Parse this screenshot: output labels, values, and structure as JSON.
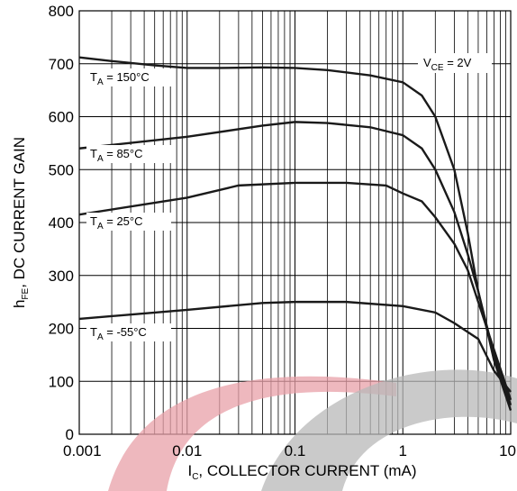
{
  "chart_data": {
    "type": "line",
    "log_x": true,
    "grid": true,
    "color": "#1a1a1a",
    "y_label": {
      "base": "h",
      "sub": "FE",
      "text": ", DC CURRENT GAIN"
    },
    "x_label": {
      "base": "I",
      "sub": "C",
      "text": ", COLLECTOR CURRENT (mA)"
    },
    "annotation": {
      "base": "V",
      "sub": "CE",
      "text": " = 2V"
    },
    "xlim": [
      0.001,
      10
    ],
    "ylim": [
      0,
      800
    ],
    "xticks": [
      0.001,
      0.01,
      0.1,
      1,
      10
    ],
    "xminorticks": [
      0.002,
      0.003,
      0.004,
      0.005,
      0.006,
      0.007,
      0.008,
      0.009,
      0.02,
      0.03,
      0.04,
      0.05,
      0.06,
      0.07,
      0.08,
      0.09,
      0.2,
      0.3,
      0.4,
      0.5,
      0.6,
      0.7,
      0.8,
      0.9,
      2,
      3,
      4,
      5,
      6,
      7,
      8,
      9
    ],
    "yticks": [
      0,
      100,
      200,
      300,
      400,
      500,
      600,
      700,
      800
    ],
    "series": [
      {
        "label": {
          "base": "T",
          "sub": "A",
          "text": " = 150°C"
        },
        "x": [
          0.001,
          0.002,
          0.005,
          0.01,
          0.02,
          0.05,
          0.1,
          0.2,
          0.5,
          1,
          1.5,
          2,
          3,
          4,
          5,
          7,
          10
        ],
        "values": [
          712,
          705,
          697,
          692,
          692,
          693,
          692,
          688,
          678,
          665,
          640,
          600,
          500,
          380,
          270,
          140,
          45
        ]
      },
      {
        "label": {
          "base": "T",
          "sub": "A",
          "text": " = 85°C"
        },
        "x": [
          0.001,
          0.01,
          0.05,
          0.1,
          0.2,
          0.5,
          1,
          1.5,
          2,
          3,
          4,
          5,
          7,
          10
        ],
        "values": [
          540,
          562,
          583,
          590,
          588,
          580,
          565,
          540,
          500,
          420,
          340,
          270,
          150,
          55
        ]
      },
      {
        "label": {
          "base": "T",
          "sub": "A",
          "text": " = 25°C"
        },
        "x": [
          0.001,
          0.01,
          0.03,
          0.1,
          0.3,
          0.7,
          1,
          1.5,
          2,
          3,
          4,
          5,
          7,
          10
        ],
        "values": [
          415,
          447,
          470,
          475,
          475,
          470,
          455,
          440,
          410,
          360,
          310,
          250,
          160,
          65
        ]
      },
      {
        "label": {
          "base": "T",
          "sub": "A",
          "text": " = -55°C"
        },
        "x": [
          0.001,
          0.01,
          0.05,
          0.1,
          0.3,
          1,
          2,
          3,
          5,
          7,
          10
        ],
        "values": [
          218,
          235,
          248,
          250,
          250,
          242,
          230,
          210,
          180,
          120,
          80
        ]
      }
    ]
  }
}
